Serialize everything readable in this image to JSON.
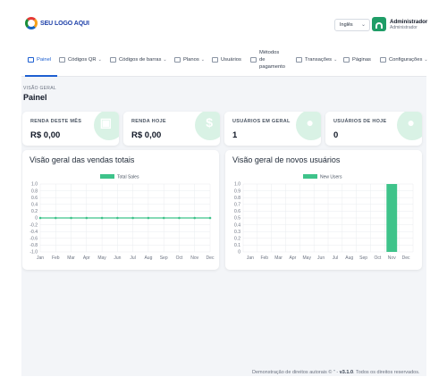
{
  "header": {
    "logo_text": "SEU LOGO AQUI",
    "language": "Inglês",
    "user_name": "Administrador",
    "user_role": "Administrador"
  },
  "nav": {
    "items": [
      {
        "label": "Painel",
        "icon": "home-icon",
        "dropdown": false,
        "active": true
      },
      {
        "label": "Códigos QR",
        "icon": "qr-icon",
        "dropdown": true
      },
      {
        "label": "Códigos de barras",
        "icon": "barcode-icon",
        "dropdown": true
      },
      {
        "label": "Planos",
        "icon": "plans-icon",
        "dropdown": true
      },
      {
        "label": "Usuários",
        "icon": "users-icon",
        "dropdown": false
      },
      {
        "label_lines": [
          "Métodos",
          "de",
          "pagamento"
        ],
        "icon": "wallet-icon",
        "dropdown": false
      },
      {
        "label": "Transações",
        "icon": "receipt-icon",
        "dropdown": true
      },
      {
        "label": "Páginas",
        "icon": "file-icon",
        "dropdown": false
      },
      {
        "label": "Configurações",
        "icon": "gear-icon",
        "dropdown": true
      }
    ]
  },
  "page": {
    "eyebrow": "VISÃO GERAL",
    "title": "Painel"
  },
  "stats": [
    {
      "label": "RENDA DESTE MÊS",
      "value": "R$ 0,00",
      "icon": "wallet-icon"
    },
    {
      "label": "RENDA HOJE",
      "value": "R$ 0,00",
      "icon": "coins-icon"
    },
    {
      "label": "USUÁRIOS EM GERAL",
      "value": "1",
      "icon": "users-icon"
    },
    {
      "label": "USUÁRIOS DE HOJE",
      "value": "0",
      "icon": "user-icon"
    }
  ],
  "footer": {
    "prefix": "Demonstração de direitos autorais © \" - ",
    "version": "v3.1.0",
    "suffix": ". Todos os direitos reservados."
  },
  "colors": {
    "accent": "#1d5fd1",
    "series": "#3ec38a"
  },
  "chart_data": [
    {
      "type": "line",
      "title": "Visão geral das vendas totais",
      "categories": [
        "Jan",
        "Feb",
        "Mar",
        "Apr",
        "May",
        "Jun",
        "Jul",
        "Aug",
        "Sep",
        "Oct",
        "Nov",
        "Dec"
      ],
      "series": [
        {
          "name": "Total Sales",
          "values": [
            0,
            0,
            0,
            0,
            0,
            0,
            0,
            0,
            0,
            0,
            0,
            0
          ]
        }
      ],
      "yticks": [
        "1.0",
        "0.8",
        "0.6",
        "0.4",
        "0.2",
        "0",
        "-0.2",
        "-0.4",
        "-0.6",
        "-0.8",
        "-1.0"
      ],
      "ylim": [
        -1,
        1
      ],
      "grid": true,
      "legend": "top-center"
    },
    {
      "type": "bar",
      "title": "Visão geral de novos usuários",
      "categories": [
        "Jan",
        "Feb",
        "Mar",
        "Apr",
        "May",
        "Jun",
        "Jul",
        "Aug",
        "Sep",
        "Oct",
        "Nov",
        "Dec"
      ],
      "series": [
        {
          "name": "New Users",
          "values": [
            0,
            0,
            0,
            0,
            0,
            0,
            0,
            0,
            0,
            0,
            1,
            0
          ]
        }
      ],
      "yticks": [
        "1.0",
        "0.9",
        "0.8",
        "0.7",
        "0.6",
        "0.5",
        "0.4",
        "0.3",
        "0.2",
        "0.1",
        "0"
      ],
      "ylim": [
        0,
        1
      ],
      "grid": true,
      "legend": "top-center"
    }
  ]
}
